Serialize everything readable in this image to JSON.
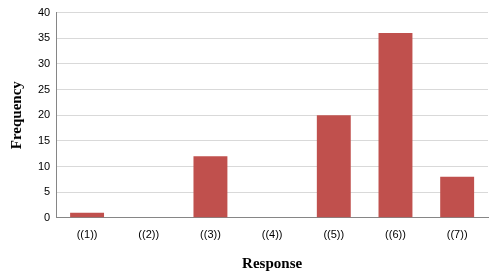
{
  "chart_data": {
    "type": "bar",
    "x_label": "Response",
    "y_label": "Frequency",
    "categories": [
      "((1))",
      "((2))",
      "((3))",
      "((4))",
      "((5))",
      "((6))",
      "((7))"
    ],
    "values": [
      1,
      0,
      12,
      0,
      20,
      36,
      8
    ],
    "color": "#c0504d",
    "ylim": [
      0,
      40
    ],
    "yticks": [
      0,
      5,
      10,
      15,
      20,
      25,
      30,
      35,
      40
    ],
    "grid": true
  }
}
